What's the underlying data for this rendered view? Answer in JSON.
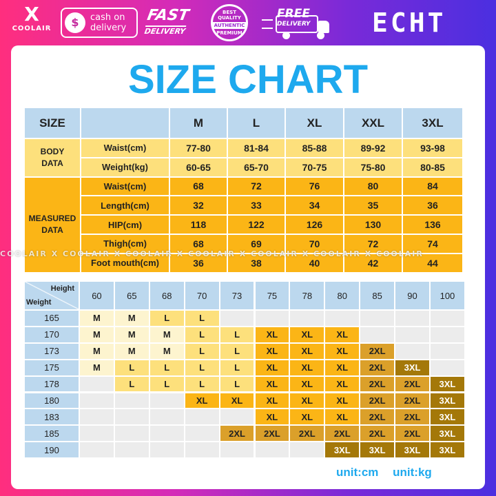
{
  "banner": {
    "brand_x": "X",
    "brand_name": "COOLAIR",
    "cod_icon": "$",
    "cod_line1": "cash on",
    "cod_line2": "delivery",
    "fast_line1": "FAST",
    "fast_line2": "DELIVERY",
    "seal_top": "BEST QUALITY",
    "seal_mid": "AUTHENTIC",
    "seal_bottom": "PREMIUM",
    "free_line1": "FREE",
    "free_line2": "DELIVERY",
    "store_logo": "ECHT"
  },
  "title": "SIZE CHART",
  "watermark": "COOLAIR X COOLAIR X COOLAIR X COOLAIR X COOLAIR X COOLAIR X COOLAIR",
  "size_table": {
    "size_label": "SIZE",
    "sizes": [
      "M",
      "L",
      "XL",
      "XXL",
      "3XL"
    ],
    "body_section": "BODY\nDATA",
    "measured_section": "MEASURED\nDATA",
    "body_rows": [
      {
        "label": "Waist(cm)",
        "values": [
          "77-80",
          "81-84",
          "85-88",
          "89-92",
          "93-98"
        ]
      },
      {
        "label": "Weight(kg)",
        "values": [
          "60-65",
          "65-70",
          "70-75",
          "75-80",
          "80-85"
        ]
      }
    ],
    "measured_rows": [
      {
        "label": "Waist(cm)",
        "values": [
          "68",
          "72",
          "76",
          "80",
          "84"
        ]
      },
      {
        "label": "Length(cm)",
        "values": [
          "32",
          "33",
          "34",
          "35",
          "36"
        ]
      },
      {
        "label": "HIP(cm)",
        "values": [
          "118",
          "122",
          "126",
          "130",
          "136"
        ]
      },
      {
        "label": "Thigh(cm)",
        "values": [
          "68",
          "69",
          "70",
          "72",
          "74"
        ]
      },
      {
        "label": "Foot mouth(cm)",
        "values": [
          "36",
          "38",
          "40",
          "42",
          "44"
        ]
      }
    ]
  },
  "hw_table": {
    "height_label": "Height",
    "weight_label": "Weight",
    "heights": [
      "60",
      "65",
      "68",
      "70",
      "73",
      "75",
      "78",
      "80",
      "85",
      "90",
      "100"
    ],
    "rows": [
      {
        "weight": "165",
        "cells": [
          "M",
          "M",
          "L",
          "L",
          "",
          "",
          "",
          "",
          "",
          "",
          ""
        ]
      },
      {
        "weight": "170",
        "cells": [
          "M",
          "M",
          "M",
          "L",
          "L",
          "XL",
          "XL",
          "XL",
          "",
          "",
          ""
        ]
      },
      {
        "weight": "173",
        "cells": [
          "M",
          "M",
          "M",
          "L",
          "L",
          "XL",
          "XL",
          "XL",
          "2XL",
          "",
          ""
        ]
      },
      {
        "weight": "175",
        "cells": [
          "M",
          "L",
          "L",
          "L",
          "L",
          "XL",
          "XL",
          "XL",
          "2XL",
          "3XL",
          ""
        ]
      },
      {
        "weight": "178",
        "cells": [
          "",
          "L",
          "L",
          "L",
          "L",
          "XL",
          "XL",
          "XL",
          "2XL",
          "2XL",
          "3XL"
        ]
      },
      {
        "weight": "180",
        "cells": [
          "",
          "",
          "",
          "XL",
          "XL",
          "XL",
          "XL",
          "XL",
          "2XL",
          "2XL",
          "3XL"
        ]
      },
      {
        "weight": "183",
        "cells": [
          "",
          "",
          "",
          "",
          "",
          "XL",
          "XL",
          "XL",
          "2XL",
          "2XL",
          "3XL"
        ]
      },
      {
        "weight": "185",
        "cells": [
          "",
          "",
          "",
          "",
          "2XL",
          "2XL",
          "2XL",
          "2XL",
          "2XL",
          "2XL",
          "3XL"
        ]
      },
      {
        "weight": "190",
        "cells": [
          "",
          "",
          "",
          "",
          "",
          "",
          "",
          "3XL",
          "3XL",
          "3XL",
          "3XL"
        ]
      }
    ]
  },
  "units": {
    "length": "unit:cm",
    "weight": "unit:kg"
  },
  "colors": {
    "title": "#1ea9ee",
    "header": "#bcd8ee",
    "body_data": "#fde07c",
    "measured_data": "#fbb516",
    "M": "#fdf4cf",
    "L": "#fde07c",
    "XL": "#fbb516",
    "2XL": "#dba02a",
    "3XL": "#a47809"
  }
}
